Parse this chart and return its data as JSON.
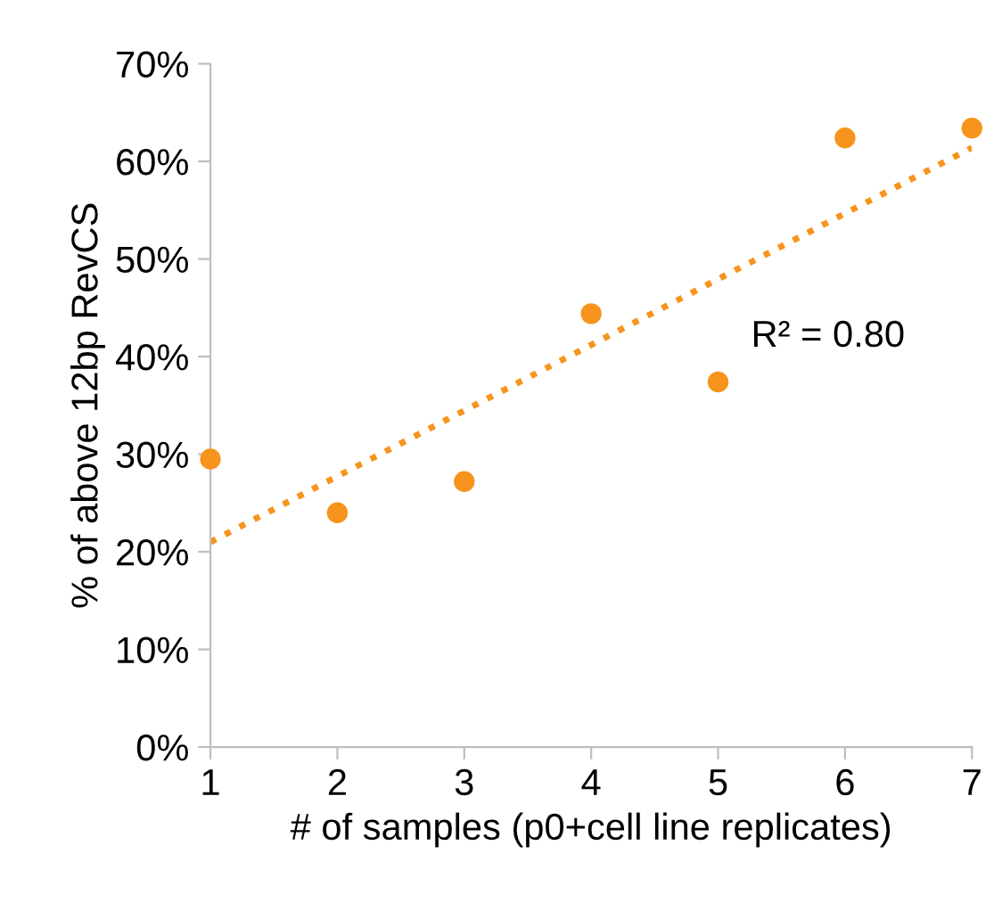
{
  "chart_data": {
    "type": "scatter",
    "xlabel": "# of samples (p0+cell line replicates)",
    "ylabel": "% of above 12bp RevCS",
    "x": [
      1,
      2,
      3,
      4,
      5,
      6,
      7
    ],
    "series": [
      {
        "color": "#f7941d",
        "values": [
          29.5,
          24.0,
          27.2,
          44.4,
          37.4,
          62.4,
          63.4
        ],
        "marker": "circle"
      },
      {
        "type": "line",
        "color": "#f7941d",
        "x": [
          1,
          7
        ],
        "values": [
          21.0,
          61.4
        ],
        "line_style": "dotted",
        "marker": "none"
      }
    ],
    "annotations": [
      "R² = 0.80"
    ],
    "xlim": [
      1,
      7
    ],
    "xticks": [
      1,
      2,
      3,
      4,
      5,
      6,
      7
    ],
    "ylim": [
      0,
      70
    ],
    "yticks": [
      {
        "value": 0,
        "label": "0%"
      },
      {
        "value": 10,
        "label": "10%"
      },
      {
        "value": 20,
        "label": "20%"
      },
      {
        "value": 30,
        "label": "30%"
      },
      {
        "value": 40,
        "label": "40%"
      },
      {
        "value": 50,
        "label": "50%"
      },
      {
        "value": 60,
        "label": "60%"
      },
      {
        "value": 70,
        "label": "70%"
      }
    ],
    "grid": false,
    "legend": false
  }
}
